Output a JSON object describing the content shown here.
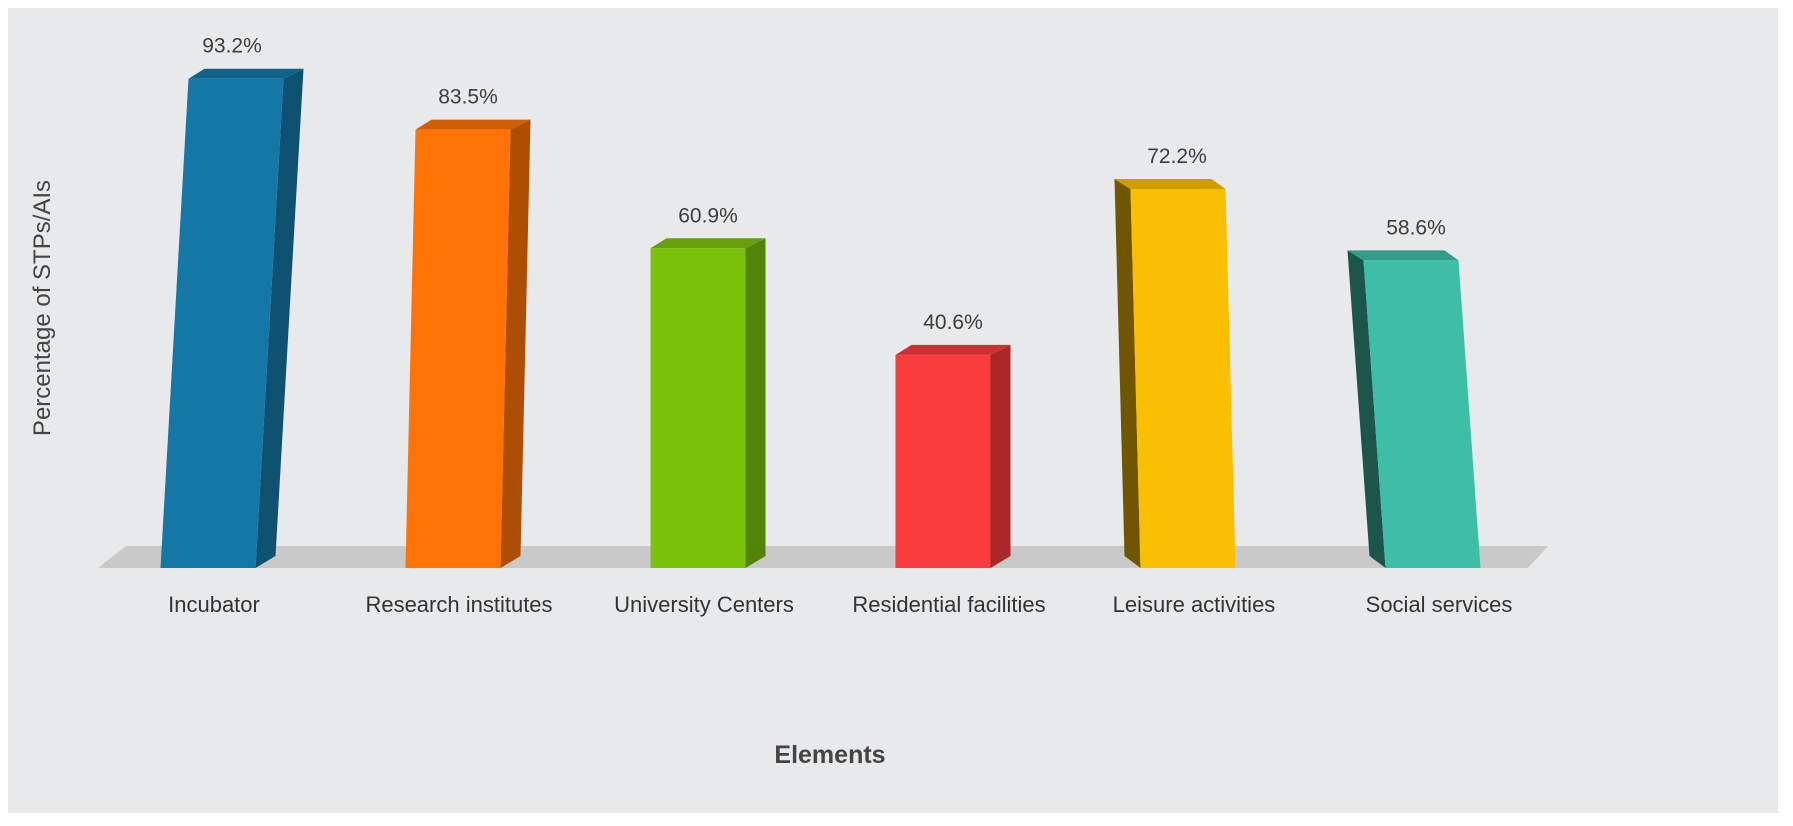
{
  "chart_data": {
    "type": "bar",
    "style": "3d-column",
    "title": "",
    "xlabel": "Elements",
    "ylabel": "Percentage of STPs/AIs",
    "categories": [
      "Incubator",
      "Research institutes",
      "University Centers",
      "Residential facilities",
      "Leisure activities",
      "Social services"
    ],
    "series": [
      {
        "values": [
          93.2,
          83.5,
          60.9,
          40.6,
          72.2,
          58.6
        ]
      }
    ],
    "value_labels": [
      "93.2%",
      "83.5%",
      "60.9%",
      "40.6%",
      "72.2%",
      "58.6%"
    ],
    "colors": [
      "#1577a6",
      "#ff7206",
      "#7cc20b",
      "#f93c3c",
      "#fbbf02",
      "#3fbea6"
    ],
    "ylim": [
      0,
      100
    ],
    "grid": false,
    "legend": "none"
  },
  "background_color": "#e8e9eb",
  "floor_color": "#c9c9c9"
}
